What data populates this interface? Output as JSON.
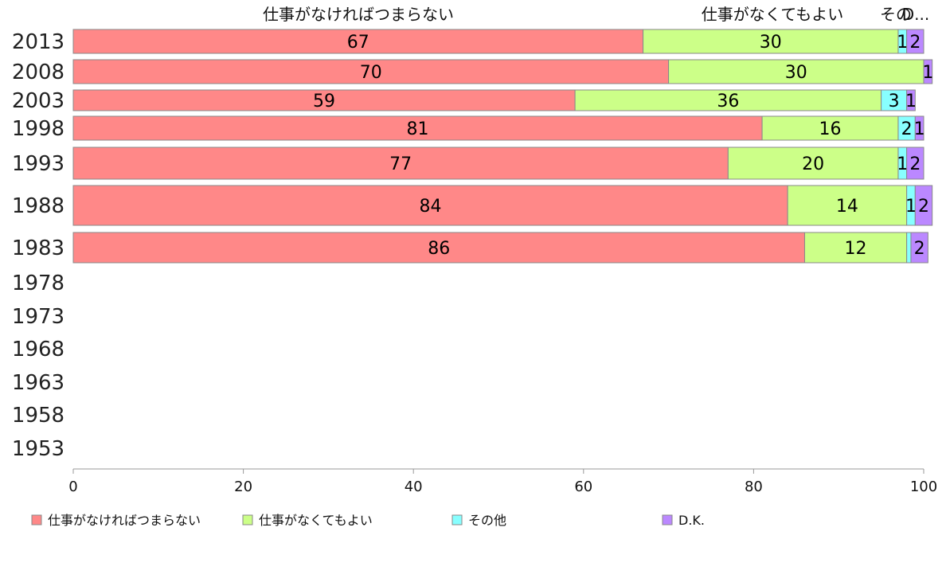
{
  "chart_data": {
    "type": "bar",
    "orientation": "horizontal",
    "stacked": true,
    "categories": [
      "2013",
      "2008",
      "2003",
      "1998",
      "1993",
      "1988",
      "1983",
      "1978",
      "1973",
      "1968",
      "1963",
      "1958",
      "1953"
    ],
    "series": [
      {
        "name": "仕事がなければつまらない",
        "color": "#ff8888",
        "values": [
          67,
          70,
          59,
          81,
          77,
          84,
          86,
          null,
          null,
          null,
          null,
          null,
          null
        ]
      },
      {
        "name": "仕事がなくてもよい",
        "color": "#ccff88",
        "values": [
          30,
          30,
          36,
          16,
          20,
          14,
          12,
          null,
          null,
          null,
          null,
          null,
          null
        ]
      },
      {
        "name": "その他",
        "color": "#88ffff",
        "values": [
          1,
          0,
          3,
          2,
          1,
          1,
          0.5,
          null,
          null,
          null,
          null,
          null,
          null
        ]
      },
      {
        "name": "D.K.",
        "color": "#bb88ff",
        "values": [
          2,
          1,
          1,
          1,
          2,
          2,
          2,
          null,
          null,
          null,
          null,
          null,
          null
        ]
      }
    ],
    "segment_labels": [
      [
        "67",
        "30",
        "1",
        "2"
      ],
      [
        "70",
        "30",
        "",
        "1"
      ],
      [
        "59",
        "36",
        "3",
        "1"
      ],
      [
        "81",
        "16",
        "2",
        "1"
      ],
      [
        "77",
        "20",
        "1",
        "2"
      ],
      [
        "84",
        "14",
        "1",
        "2"
      ],
      [
        "86",
        "12",
        "",
        "2"
      ],
      [
        "",
        "",
        "",
        ""
      ],
      [
        "",
        "",
        "",
        ""
      ],
      [
        "",
        "",
        "",
        ""
      ],
      [
        "",
        "",
        "",
        ""
      ],
      [
        "",
        "",
        "",
        ""
      ],
      [
        "",
        "",
        "",
        ""
      ]
    ],
    "header_labels": [
      "仕事がなければつまらない",
      "仕事がなくてもよい",
      "その",
      "D..."
    ],
    "xlim": [
      0,
      100
    ],
    "x_ticks": [
      0,
      20,
      40,
      60,
      80,
      100
    ],
    "grid": false,
    "legend_position": "bottom",
    "bar_edge_color": "#888888"
  }
}
